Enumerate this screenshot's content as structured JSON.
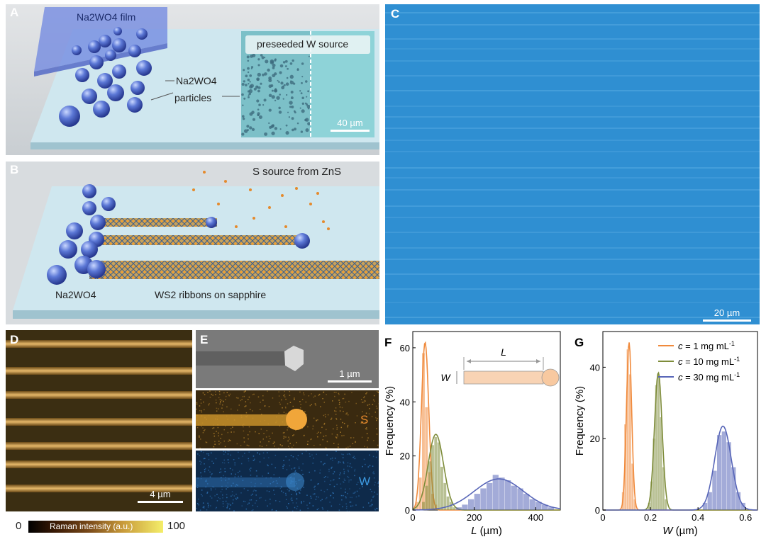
{
  "panelA": {
    "letter": "A",
    "film_label": "Na2WO4 film",
    "particles_label_line1": "Na2WO4",
    "particles_label_line2": "particles",
    "inset_label": "preseeded W source",
    "scalebar": "40 µm"
  },
  "panelB": {
    "letter": "B",
    "source_label": "S source from ZnS",
    "droplet_label": "Na2WO4",
    "ribbons_label": "WS2 ribbons on sapphire"
  },
  "panelC": {
    "letter": "C",
    "scalebar": "20 µm"
  },
  "panelD": {
    "letter": "D",
    "scalebar": "4 µm"
  },
  "colorbar": {
    "min": "0",
    "max": "100",
    "label": "Raman intensity (a.u.)"
  },
  "panelE": {
    "letter": "E",
    "scalebar": "1 µm",
    "s_label": "S",
    "w_label": "W"
  },
  "panelF": {
    "letter": "F",
    "inset_L": "L",
    "inset_W": "W"
  },
  "panelG": {
    "letter": "G"
  },
  "colors": {
    "orange": "#F08A3C",
    "olive": "#7E8C3A",
    "blue": "#5866B8",
    "substrate": "#C7E3EE",
    "optical": "#2E8FD0"
  },
  "chart_data": [
    {
      "type": "bar",
      "id": "F",
      "title": "",
      "xlabel": "L (µm)",
      "ylabel": "Frequency (%)",
      "xlim": [
        0,
        480
      ],
      "ylim": [
        0,
        66
      ],
      "xticks": [
        0,
        200,
        400
      ],
      "yticks": [
        0,
        20,
        40,
        60
      ],
      "series": [
        {
          "name": "c = 1 mg mL-1",
          "color": "orange",
          "bin_width": 10,
          "x": [
            15,
            25,
            35,
            45,
            55,
            65,
            75
          ],
          "values": [
            3,
            12,
            58,
            38,
            14,
            6,
            2
          ],
          "fit": {
            "mu": 40,
            "sigma": 12,
            "peak": 62
          }
        },
        {
          "name": "c = 10 mg mL-1",
          "color": "olive",
          "bin_width": 10,
          "x": [
            35,
            45,
            55,
            65,
            75,
            85,
            95,
            105,
            115,
            125,
            135
          ],
          "values": [
            3,
            9,
            18,
            24,
            27,
            25,
            16,
            10,
            5,
            3,
            1
          ],
          "fit": {
            "mu": 75,
            "sigma": 25,
            "peak": 28
          }
        },
        {
          "name": "c = 30 mg mL-1",
          "color": "blue",
          "bin_width": 20,
          "x": [
            150,
            170,
            190,
            210,
            230,
            250,
            270,
            290,
            310,
            330,
            350,
            370,
            390,
            410,
            430,
            450
          ],
          "values": [
            1,
            2,
            4,
            6,
            8,
            10,
            13,
            12,
            11,
            9,
            8,
            6,
            4,
            3,
            2,
            1
          ],
          "fit": {
            "mu": 280,
            "sigma": 80,
            "peak": 11.5
          }
        }
      ]
    },
    {
      "type": "bar",
      "id": "G",
      "title": "",
      "xlabel": "W (µm)",
      "ylabel": "Frequency (%)",
      "xlim": [
        0,
        0.65
      ],
      "ylim": [
        0,
        50
      ],
      "xticks": [
        0.0,
        0.2,
        0.4,
        0.6
      ],
      "xtick_labels": [
        "0",
        "0.2",
        "0.4",
        "0.6"
      ],
      "yticks": [
        0,
        20,
        40
      ],
      "series": [
        {
          "name": "c = 1 mg mL-1",
          "color": "orange",
          "bin_width": 0.01,
          "x": [
            0.085,
            0.095,
            0.105,
            0.115,
            0.125,
            0.135
          ],
          "values": [
            5,
            24,
            45,
            38,
            13,
            3
          ],
          "fit": {
            "mu": 0.11,
            "sigma": 0.011,
            "peak": 47
          }
        },
        {
          "name": "c = 10 mg mL-1",
          "color": "olive",
          "bin_width": 0.01,
          "x": [
            0.195,
            0.205,
            0.215,
            0.225,
            0.235,
            0.245,
            0.255,
            0.265
          ],
          "values": [
            2,
            8,
            20,
            35,
            38,
            26,
            12,
            3
          ],
          "fit": {
            "mu": 0.233,
            "sigma": 0.016,
            "peak": 38.5
          }
        },
        {
          "name": "c = 30 mg mL-1",
          "color": "blue",
          "bin_width": 0.02,
          "x": [
            0.43,
            0.45,
            0.47,
            0.49,
            0.51,
            0.53,
            0.55,
            0.57,
            0.59
          ],
          "values": [
            2,
            5,
            11,
            21,
            22,
            19,
            12,
            5,
            2
          ],
          "fit": {
            "mu": 0.505,
            "sigma": 0.035,
            "peak": 23.5
          }
        }
      ],
      "legend": "top-right"
    }
  ]
}
